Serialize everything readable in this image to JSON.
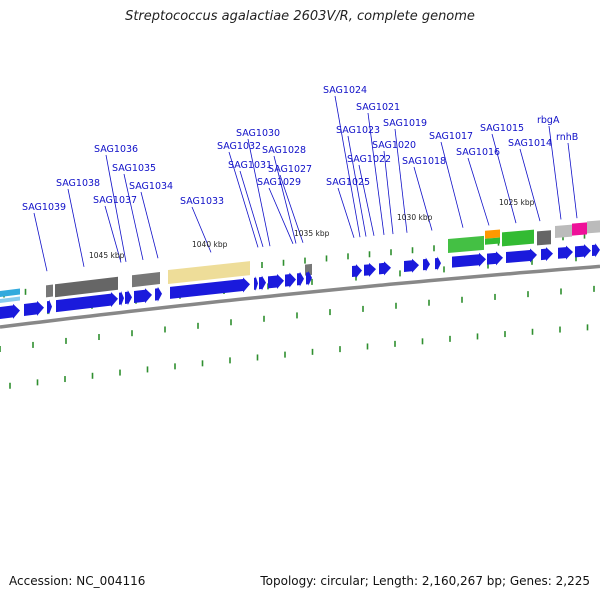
{
  "header": {
    "title": "Streptococcus agalactiae 2603V/R, complete genome"
  },
  "footer": {
    "accession": "Accession: NC_004116",
    "stats": "Topology: circular; Length: 2,160,267 bp; Genes: 2,225"
  },
  "colors": {
    "cds": "#1a1adc",
    "label": "#1010c8",
    "backbone": "#888888",
    "tick": "#2f8f2f"
  },
  "kbp_marks": [
    "1045 kbp",
    "1040 kbp",
    "1035 kbp",
    "1030 kbp",
    "1025 kbp"
  ],
  "genes": [
    "SAG1039",
    "SAG1038",
    "SAG1037",
    "SAG1036",
    "SAG1035",
    "SAG1034",
    "SAG1033",
    "SAG1032",
    "SAG1031",
    "SAG1030",
    "SAG1029",
    "SAG1028",
    "SAG1027",
    "SAG1025",
    "SAG1024",
    "SAG1023",
    "SAG1022",
    "SAG1021",
    "SAG1020",
    "SAG1019",
    "SAG1018",
    "SAG1017",
    "SAG1016",
    "SAG1015",
    "SAG1014",
    "rbgA",
    "rnhB"
  ]
}
